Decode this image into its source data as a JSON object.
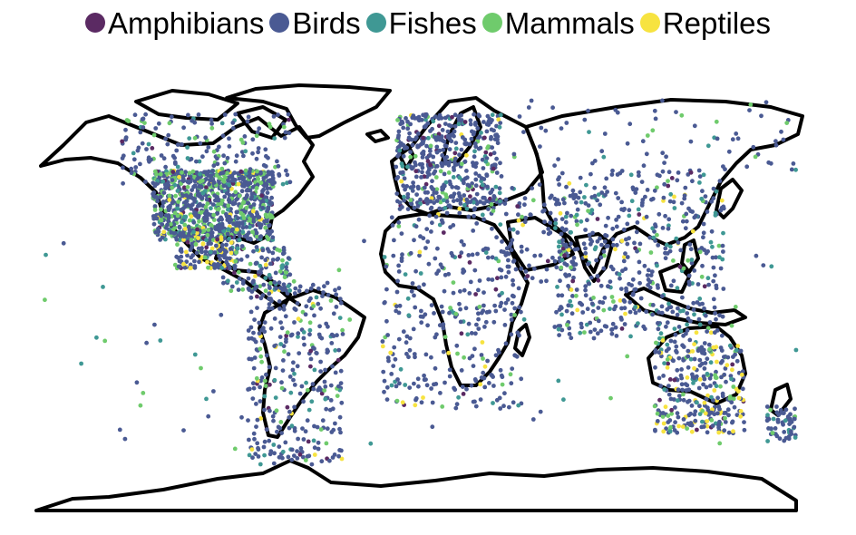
{
  "legend": {
    "items": [
      {
        "label": "Amphibians",
        "color": "#5b2a63"
      },
      {
        "label": "Birds",
        "color": "#4a5a93"
      },
      {
        "label": "Fishes",
        "color": "#3f9894"
      },
      {
        "label": "Mammals",
        "color": "#6fcb6c"
      },
      {
        "label": "Reptiles",
        "color": "#f7e340"
      }
    ]
  },
  "map": {
    "projection": "equirectangular",
    "outline_color": "#000000",
    "point_regions": [
      {
        "lon": [
          -125,
          -68
        ],
        "lat": [
          25,
          50
        ],
        "n": 900,
        "mix": [
          0.03,
          0.62,
          0.08,
          0.24,
          0.03
        ]
      },
      {
        "lon": [
          -140,
          -60
        ],
        "lat": [
          45,
          70
        ],
        "n": 180,
        "mix": [
          0.02,
          0.7,
          0.08,
          0.2,
          0.0
        ]
      },
      {
        "lon": [
          -115,
          -85
        ],
        "lat": [
          15,
          30
        ],
        "n": 200,
        "mix": [
          0.03,
          0.55,
          0.07,
          0.15,
          0.2
        ]
      },
      {
        "lon": [
          -92,
          -60
        ],
        "lat": [
          7,
          23
        ],
        "n": 120,
        "mix": [
          0.05,
          0.6,
          0.15,
          0.1,
          0.1
        ]
      },
      {
        "lon": [
          -80,
          -35
        ],
        "lat": [
          -55,
          10
        ],
        "n": 320,
        "mix": [
          0.04,
          0.78,
          0.06,
          0.08,
          0.04
        ]
      },
      {
        "lon": [
          -10,
          40
        ],
        "lat": [
          36,
          70
        ],
        "n": 480,
        "mix": [
          0.06,
          0.78,
          0.08,
          0.06,
          0.02
        ]
      },
      {
        "lon": [
          -17,
          50
        ],
        "lat": [
          -35,
          35
        ],
        "n": 330,
        "mix": [
          0.03,
          0.8,
          0.07,
          0.06,
          0.04
        ]
      },
      {
        "lon": [
          35,
          75
        ],
        "lat": [
          10,
          45
        ],
        "n": 90,
        "mix": [
          0.02,
          0.85,
          0.05,
          0.05,
          0.03
        ]
      },
      {
        "lon": [
          65,
          145
        ],
        "lat": [
          -10,
          50
        ],
        "n": 520,
        "mix": [
          0.03,
          0.72,
          0.15,
          0.06,
          0.04
        ]
      },
      {
        "lon": [
          45,
          180
        ],
        "lat": [
          50,
          75
        ],
        "n": 70,
        "mix": [
          0.0,
          0.82,
          0.08,
          0.1,
          0.0
        ]
      },
      {
        "lon": [
          112,
          155
        ],
        "lat": [
          -44,
          -10
        ],
        "n": 300,
        "mix": [
          0.03,
          0.65,
          0.08,
          0.08,
          0.16
        ]
      },
      {
        "lon": [
          165,
          179
        ],
        "lat": [
          -47,
          -34
        ],
        "n": 60,
        "mix": [
          0.0,
          0.85,
          0.1,
          0.05,
          0.0
        ]
      },
      {
        "lon": [
          -180,
          180
        ],
        "lat": [
          -50,
          30
        ],
        "n": 90,
        "mix": [
          0.0,
          0.4,
          0.3,
          0.3,
          0.0
        ]
      }
    ],
    "random_seed": 42
  }
}
